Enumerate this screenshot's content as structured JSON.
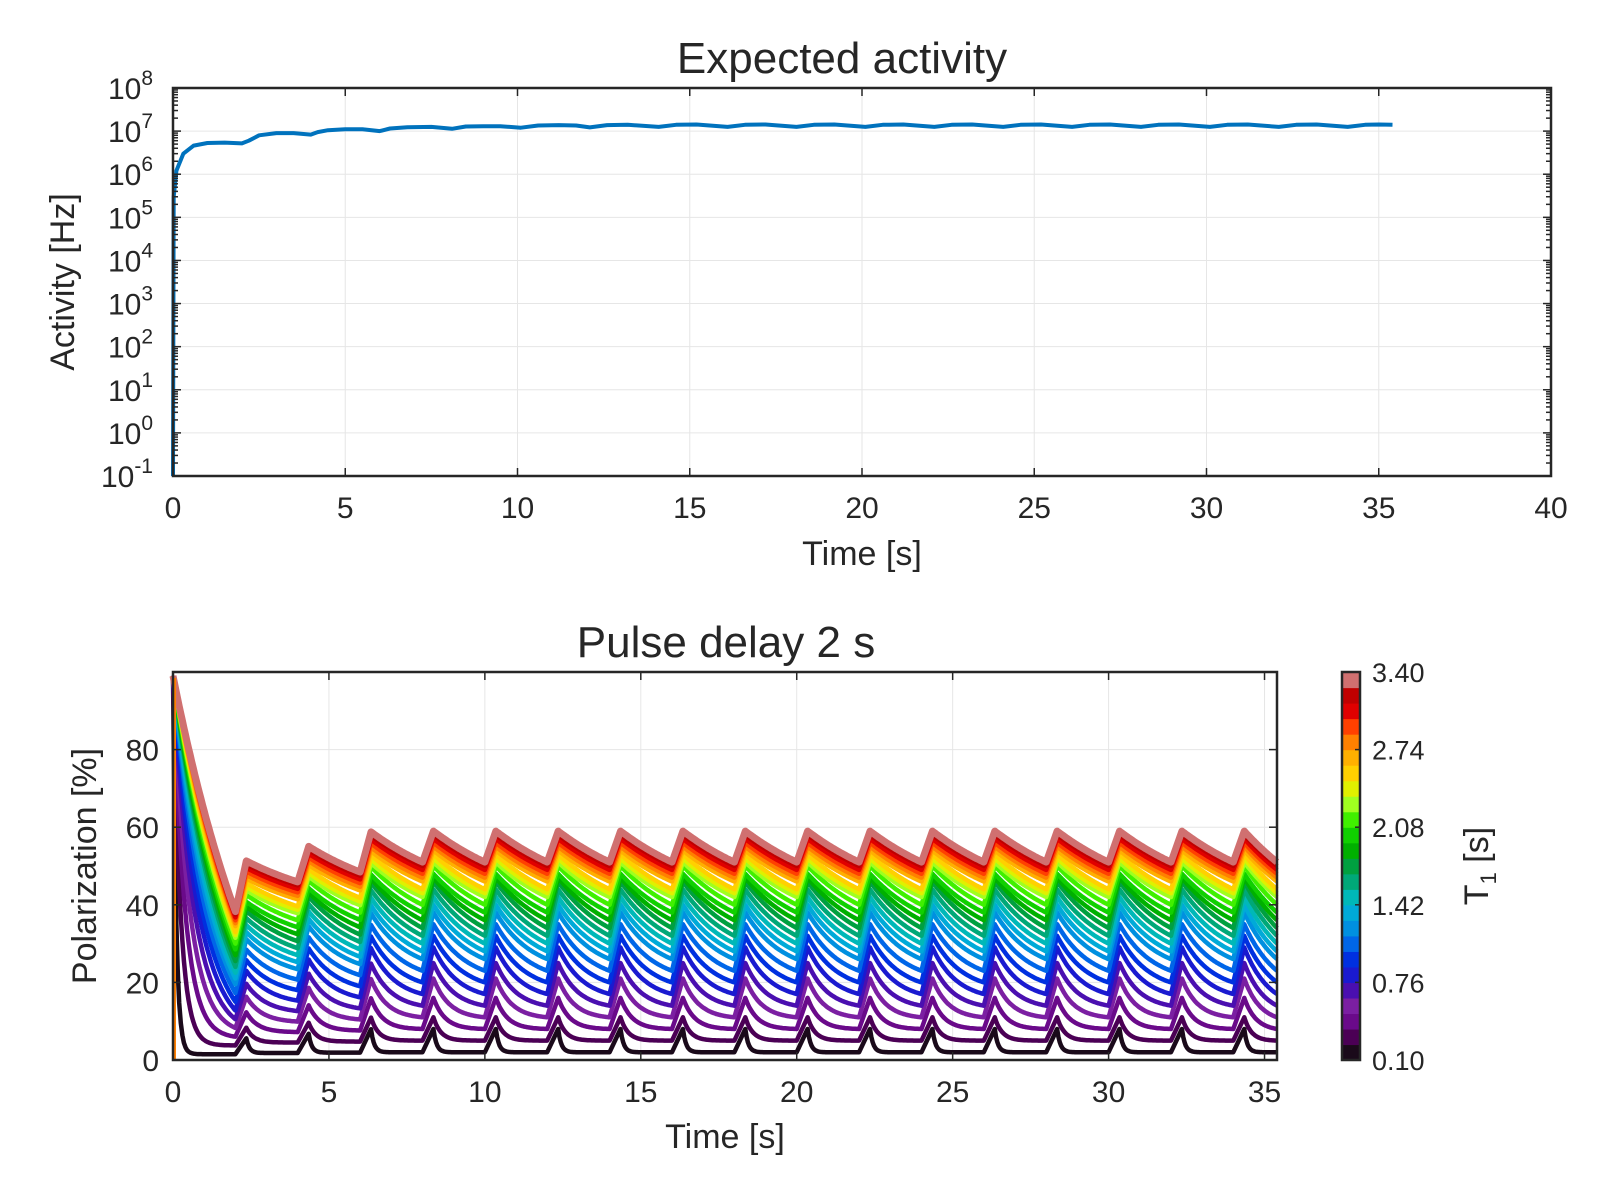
{
  "top": {
    "title": "Expected activity",
    "xlabel": "Time [s]",
    "ylabel": "Activity [Hz]"
  },
  "bottom": {
    "title": "Pulse delay 2 s",
    "xlabel": "Time [s]",
    "ylabel": "Polarization [%]"
  },
  "colorbar": {
    "label": "T",
    "label_sub": "1",
    "label_unit": " [s]",
    "tick_labels": [
      "3.40",
      "2.74",
      "2.08",
      "1.42",
      "0.76",
      "0.10"
    ],
    "tick_values": [
      3.4,
      2.74,
      2.08,
      1.42,
      0.76,
      0.1
    ],
    "range": [
      0.1,
      3.4
    ],
    "colors": [
      "#1a0a1a",
      "#4b0055",
      "#6a0a8a",
      "#7b1fa2",
      "#4a0fb0",
      "#1a1ad0",
      "#0030e0",
      "#0066e8",
      "#0090e0",
      "#00aad8",
      "#00b8b8",
      "#00a878",
      "#00a040",
      "#00b000",
      "#10d000",
      "#40f000",
      "#a0ff20",
      "#e0f000",
      "#ffd000",
      "#ffb000",
      "#ff8000",
      "#ff4000",
      "#e00000",
      "#c00000",
      "#d07070"
    ]
  },
  "chart_data": [
    {
      "type": "line",
      "title": "Expected activity",
      "xlabel": "Time [s]",
      "ylabel": "Activity [Hz]",
      "xlim": [
        0,
        40
      ],
      "ylim": [
        0.1,
        100000000
      ],
      "yscale": "log",
      "x_ticks": [
        "0",
        "5",
        "10",
        "15",
        "20",
        "25",
        "30",
        "35",
        "40"
      ],
      "y_ticks": [
        {
          "base": "10",
          "exp": "-1"
        },
        {
          "base": "10",
          "exp": "0"
        },
        {
          "base": "10",
          "exp": "1"
        },
        {
          "base": "10",
          "exp": "2"
        },
        {
          "base": "10",
          "exp": "3"
        },
        {
          "base": "10",
          "exp": "4"
        },
        {
          "base": "10",
          "exp": "5"
        },
        {
          "base": "10",
          "exp": "6"
        },
        {
          "base": "10",
          "exp": "7"
        },
        {
          "base": "10",
          "exp": "8"
        }
      ],
      "grid": true,
      "series": [
        {
          "color": "#0072bd",
          "points": [
            [
              0,
              0.1
            ],
            [
              0.02,
              300000
            ],
            [
              0.1,
              1200000
            ],
            [
              0.3,
              3000000
            ],
            [
              0.6,
              4600000
            ],
            [
              1.0,
              5300000
            ],
            [
              1.5,
              5400000
            ],
            [
              2.0,
              5200000
            ],
            [
              2.2,
              6000000
            ],
            [
              2.5,
              8000000
            ],
            [
              3.0,
              9000000
            ],
            [
              3.5,
              9000000
            ],
            [
              4.0,
              8300000
            ],
            [
              4.2,
              9500000
            ],
            [
              4.5,
              10500000
            ],
            [
              5.0,
              11000000
            ],
            [
              5.5,
              11000000
            ],
            [
              6.0,
              10000000
            ],
            [
              6.3,
              11500000
            ],
            [
              6.8,
              12300000
            ],
            [
              7.5,
              12500000
            ],
            [
              8.1,
              11300000
            ],
            [
              8.5,
              12800000
            ],
            [
              9.0,
              13000000
            ],
            [
              9.5,
              13000000
            ],
            [
              10.1,
              12000000
            ],
            [
              10.6,
              13500000
            ],
            [
              11.2,
              13800000
            ],
            [
              11.7,
              13500000
            ],
            [
              12.1,
              12200000
            ],
            [
              12.6,
              13800000
            ],
            [
              13.2,
              14000000
            ],
            [
              14.1,
              12500000
            ],
            [
              14.6,
              14000000
            ],
            [
              15.2,
              14200000
            ],
            [
              16.1,
              12500000
            ],
            [
              16.6,
              14000000
            ],
            [
              17.2,
              14200000
            ],
            [
              18.1,
              12500000
            ],
            [
              18.6,
              14000000
            ],
            [
              19.2,
              14200000
            ],
            [
              20.1,
              12500000
            ],
            [
              20.6,
              14000000
            ],
            [
              21.2,
              14200000
            ],
            [
              22.1,
              12500000
            ],
            [
              22.6,
              14000000
            ],
            [
              23.2,
              14200000
            ],
            [
              24.1,
              12500000
            ],
            [
              24.6,
              14000000
            ],
            [
              25.2,
              14200000
            ],
            [
              26.1,
              12500000
            ],
            [
              26.6,
              14000000
            ],
            [
              27.2,
              14200000
            ],
            [
              28.1,
              12500000
            ],
            [
              28.6,
              14000000
            ],
            [
              29.2,
              14200000
            ],
            [
              30.1,
              12500000
            ],
            [
              30.6,
              14000000
            ],
            [
              31.2,
              14200000
            ],
            [
              32.1,
              12500000
            ],
            [
              32.6,
              14000000
            ],
            [
              33.2,
              14200000
            ],
            [
              34.1,
              12500000
            ],
            [
              34.6,
              14000000
            ],
            [
              35.0,
              14200000
            ],
            [
              35.4,
              14000000
            ]
          ]
        }
      ]
    },
    {
      "type": "line",
      "title": "Pulse delay 2 s",
      "xlabel": "Time [s]",
      "ylabel": "Polarization [%]",
      "xlim": [
        0,
        35.4
      ],
      "ylim": [
        0,
        100
      ],
      "x_ticks": [
        "0",
        "5",
        "10",
        "15",
        "20",
        "25",
        "30",
        "35"
      ],
      "y_ticks": [
        "0",
        "20",
        "40",
        "60",
        "80"
      ],
      "y_tick_values": [
        0,
        20,
        40,
        60,
        80
      ],
      "grid": true,
      "pulse_period_s": 2.0,
      "t1_values_s": [
        0.1,
        0.2375,
        0.375,
        0.5125,
        0.65,
        0.7875,
        0.925,
        1.0625,
        1.2,
        1.3375,
        1.475,
        1.6125,
        1.75,
        1.8875,
        2.025,
        2.1625,
        2.3,
        2.4375,
        2.575,
        2.7125,
        2.85,
        2.9875,
        3.125,
        3.2625,
        3.4
      ],
      "series_minima_percent": [
        2,
        5,
        8,
        11,
        14,
        17,
        20,
        23,
        26,
        28,
        30,
        32,
        34,
        36,
        38,
        40,
        42,
        43,
        44,
        46,
        47,
        48,
        49,
        50,
        51
      ],
      "series_maxima_percent": [
        8,
        11,
        16,
        21,
        25,
        29,
        32,
        35,
        38,
        40,
        42,
        44,
        46,
        47,
        48,
        50,
        51,
        52,
        53,
        54,
        55,
        56,
        57,
        58,
        59
      ]
    }
  ]
}
